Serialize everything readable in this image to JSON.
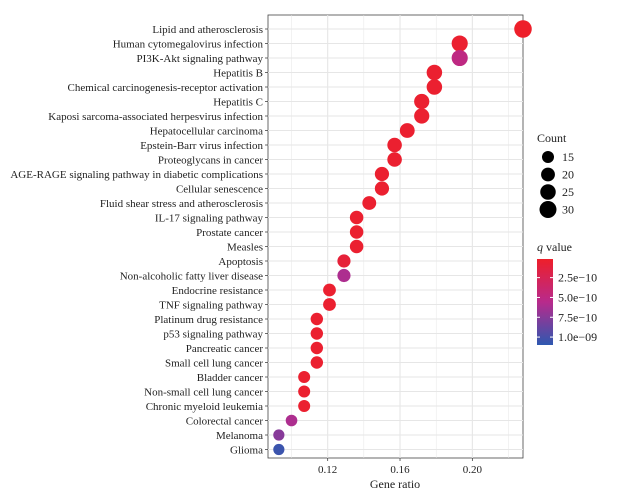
{
  "chart_data": {
    "type": "scatter",
    "title": "",
    "xlabel": "Gene ratio",
    "ylabel": "",
    "xlim": [
      0.087,
      0.228
    ],
    "x_ticks": [
      0.12,
      0.16,
      0.2
    ],
    "x_tick_labels": [
      "0.12",
      "0.16",
      "0.20"
    ],
    "grid": true,
    "categories": [
      "Lipid and atherosclerosis",
      "Human cytomegalovirus infection",
      "PI3K-Akt signaling pathway",
      "Hepatitis B",
      "Chemical carcinogenesis-receptor activation",
      "Hepatitis C",
      "Kaposi sarcoma-associated herpesvirus infection",
      "Hepatocellular carcinoma",
      "Epstein-Barr virus infection",
      "Proteoglycans in cancer",
      "AGE-RAGE signaling pathway in diabetic complications",
      "Cellular senescence",
      "Fluid shear stress and atherosclerosis",
      "IL-17 signaling pathway",
      "Prostate cancer",
      "Measles",
      "Apoptosis",
      "Non-alcoholic fatty liver disease",
      "Endocrine resistance",
      "TNF signaling pathway",
      "Platinum drug resistance",
      "p53 signaling pathway",
      "Pancreatic cancer",
      "Small cell lung cancer",
      "Bladder cancer",
      "Non-small cell lung cancer",
      "Chronic myeloid leukemia",
      "Colorectal cancer",
      "Melanoma",
      "Glioma"
    ],
    "gene_ratio": [
      0.228,
      0.193,
      0.193,
      0.179,
      0.179,
      0.172,
      0.172,
      0.164,
      0.157,
      0.157,
      0.15,
      0.15,
      0.143,
      0.136,
      0.136,
      0.136,
      0.129,
      0.129,
      0.121,
      0.121,
      0.114,
      0.114,
      0.114,
      0.114,
      0.107,
      0.107,
      0.107,
      0.1,
      0.093,
      0.093
    ],
    "count": [
      32,
      27,
      27,
      25,
      25,
      24,
      24,
      23,
      22,
      22,
      21,
      21,
      20,
      19,
      19,
      19,
      18,
      18,
      17,
      17,
      16,
      16,
      16,
      16,
      15,
      15,
      15,
      14,
      13,
      13
    ],
    "q_value": [
      1e-11,
      5e-11,
      5e-10,
      5e-11,
      5e-11,
      5e-11,
      5e-11,
      5e-11,
      5e-11,
      5e-11,
      5e-11,
      5e-11,
      5e-11,
      5e-11,
      5e-11,
      5e-11,
      1e-10,
      6e-10,
      5e-11,
      5e-11,
      5e-11,
      5e-11,
      5e-11,
      5e-11,
      5e-11,
      5e-11,
      5e-11,
      6e-10,
      7.5e-10,
      1.05e-09
    ],
    "size_legend": {
      "title": "Count",
      "values": [
        15,
        20,
        25,
        30
      ],
      "labels": [
        "15",
        "20",
        "25",
        "30"
      ]
    },
    "color_legend": {
      "title_italic": "q",
      "title_rest": " value",
      "range": [
        1.5e-11,
        1.1e-09
      ],
      "ticks": [
        2.5e-10,
        5e-10,
        7.5e-10,
        1e-09
      ],
      "labels": [
        "2.5e−10",
        "5.0e−10",
        "7.5e−10",
        "1.0e−09"
      ],
      "low_color": "#ee1f2a",
      "mid_color": "#b82a8c",
      "high_color": "#2e58b0"
    },
    "panel_background": "#ffffff",
    "grid_color": "#e6e6e6"
  }
}
